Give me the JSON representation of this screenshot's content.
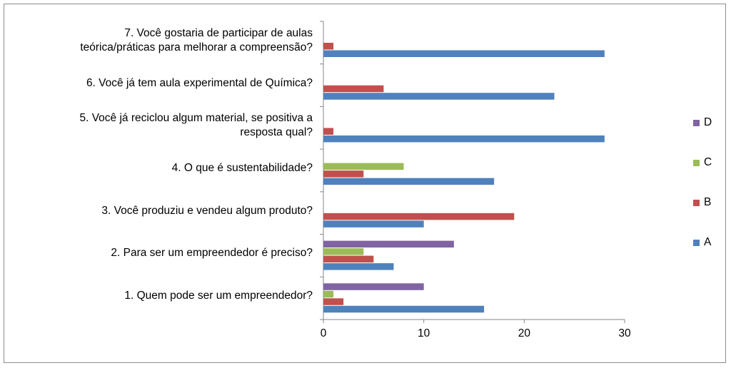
{
  "chart_data": {
    "type": "bar",
    "orientation": "horizontal",
    "categories": [
      "1.    Quem pode ser um empreendedor?",
      "2.    Para ser um empreendedor é preciso?",
      "3.    Você produziu e vendeu algum produto?",
      "4.    O que é sustentabilidade?",
      "5.    Você já reciclou algum material, se positiva a\nresposta qual?",
      "6.    Você já tem aula experimental de Química?",
      "7. Você gostaria de participar de aulas\nteórica/práticas para melhorar a compreensão?"
    ],
    "series": [
      {
        "name": "A",
        "color": "#4F81BD",
        "values": [
          16,
          7,
          10,
          17,
          28,
          23,
          28
        ]
      },
      {
        "name": "B",
        "color": "#C0504D",
        "values": [
          2,
          5,
          19,
          4,
          1,
          6,
          1
        ]
      },
      {
        "name": "C",
        "color": "#9BBB59",
        "values": [
          1,
          4,
          0,
          8,
          0,
          0,
          0
        ]
      },
      {
        "name": "D",
        "color": "#8064A2",
        "values": [
          10,
          13,
          0,
          0,
          0,
          0,
          0
        ]
      }
    ],
    "xlim": [
      0,
      30
    ],
    "xticks": [
      "0",
      "10",
      "20",
      "30"
    ],
    "title": "",
    "xlabel": "",
    "ylabel": "",
    "legend_position": "right",
    "legend_order": [
      "D",
      "C",
      "B",
      "A"
    ]
  }
}
